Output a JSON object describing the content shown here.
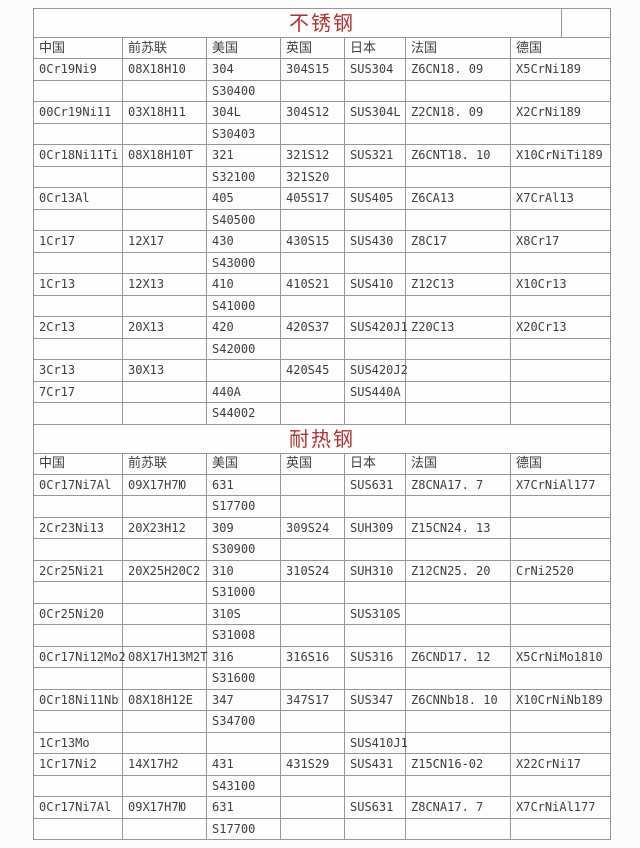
{
  "page": {
    "background": "#fcfcfc",
    "border_color": "#979797",
    "text_color": "#3f3f3f",
    "title_color": "#b23430"
  },
  "tables": [
    {
      "key": "stainless-steel",
      "title": "不锈钢",
      "column_keys": [
        "china",
        "ussr",
        "usa",
        "uk",
        "japan",
        "france",
        "germany"
      ],
      "columns": [
        "中国",
        "前苏联",
        "美国",
        "英国",
        "日本",
        "法国",
        "德国"
      ],
      "rows": [
        [
          "0Cr19Ni9",
          "08X18H10",
          "304",
          "304S15",
          "SUS304",
          "Z6CN18. 09",
          "X5CrNi189"
        ],
        [
          "",
          "",
          "S30400",
          "",
          "",
          "",
          ""
        ],
        [
          "00Cr19Ni11",
          "03X18H11",
          "304L",
          "304S12",
          "SUS304L",
          "Z2CN18. 09",
          "X2CrNi189"
        ],
        [
          "",
          "",
          "S30403",
          "",
          "",
          "",
          ""
        ],
        [
          "0Cr18Ni11Ti",
          "08X18H10T",
          "321",
          "321S12",
          "SUS321",
          "Z6CNT18. 10",
          "X10CrNiTi189"
        ],
        [
          "",
          "",
          "S32100",
          "321S20",
          "",
          "",
          ""
        ],
        [
          "0Cr13Al",
          "",
          "405",
          "405S17",
          "SUS405",
          "Z6CA13",
          "X7CrAl13"
        ],
        [
          "",
          "",
          "S40500",
          "",
          "",
          "",
          ""
        ],
        [
          "1Cr17",
          "12X17",
          "430",
          "430S15",
          "SUS430",
          "Z8C17",
          "X8Cr17"
        ],
        [
          "",
          "",
          "S43000",
          "",
          "",
          "",
          ""
        ],
        [
          "1Cr13",
          "12X13",
          "410",
          "410S21",
          "SUS410",
          "Z12C13",
          "X10Cr13"
        ],
        [
          "",
          "",
          "S41000",
          "",
          "",
          "",
          ""
        ],
        [
          "2Cr13",
          "20X13",
          "420",
          "420S37",
          "SUS420J1",
          "Z20C13",
          "X20Cr13"
        ],
        [
          "",
          "",
          "S42000",
          "",
          "",
          "",
          ""
        ],
        [
          "3Cr13",
          "30X13",
          "",
          "420S45",
          "SUS420J2",
          "",
          ""
        ],
        [
          "7Cr17",
          "",
          "440A",
          "",
          "SUS440A",
          "",
          ""
        ],
        [
          "",
          "",
          "S44002",
          "",
          "",
          "",
          ""
        ]
      ]
    },
    {
      "key": "heat-resistant-steel",
      "title": "耐热钢",
      "column_keys": [
        "china",
        "ussr",
        "usa",
        "uk",
        "japan",
        "france",
        "germany"
      ],
      "columns": [
        "中国",
        "前苏联",
        "美国",
        "英国",
        "日本",
        "法国",
        "德国"
      ],
      "rows": [
        [
          "0Cr17Ni7Al",
          "09X17H7Ю",
          "631",
          "",
          "SUS631",
          "Z8CNA17. 7",
          "X7CrNiAl177"
        ],
        [
          "",
          "",
          "S17700",
          "",
          "",
          "",
          ""
        ],
        [
          "2Cr23Ni13",
          "20X23H12",
          "309",
          "309S24",
          "SUH309",
          "Z15CN24. 13",
          ""
        ],
        [
          "",
          "",
          "S30900",
          "",
          "",
          "",
          ""
        ],
        [
          "2Cr25Ni21",
          "20X25H20C2",
          "310",
          "310S24",
          "SUH310",
          "Z12CN25. 20",
          "CrNi2520"
        ],
        [
          "",
          "",
          "S31000",
          "",
          "",
          "",
          ""
        ],
        [
          "0Cr25Ni20",
          "",
          "310S",
          "",
          "SUS310S",
          "",
          ""
        ],
        [
          "",
          "",
          "S31008",
          "",
          "",
          "",
          ""
        ],
        [
          "0Cr17Ni12Mo2",
          "08X17H13M2T",
          "316",
          "316S16",
          "SUS316",
          "Z6CND17. 12",
          "X5CrNiMo1810"
        ],
        [
          "",
          "",
          "S31600",
          "",
          "",
          "",
          ""
        ],
        [
          "0Cr18Ni11Nb",
          "08X18H12E",
          "347",
          "347S17",
          "SUS347",
          "Z6CNNb18. 10",
          "X10CrNiNb189"
        ],
        [
          "",
          "",
          "S34700",
          "",
          "",
          "",
          ""
        ],
        [
          "1Cr13Mo",
          "",
          "",
          "",
          "SUS410J1",
          "",
          ""
        ],
        [
          "1Cr17Ni2",
          "14X17H2",
          "431",
          "431S29",
          "SUS431",
          "Z15CN16-02",
          "X22CrNi17"
        ],
        [
          "",
          "",
          "S43100",
          "",
          "",
          "",
          ""
        ],
        [
          "0Cr17Ni7Al",
          "09X17H7Ю",
          "631",
          "",
          "SUS631",
          "Z8CNA17. 7",
          "X7CrNiAl177"
        ],
        [
          "",
          "",
          "S17700",
          "",
          "",
          "",
          ""
        ]
      ]
    }
  ]
}
